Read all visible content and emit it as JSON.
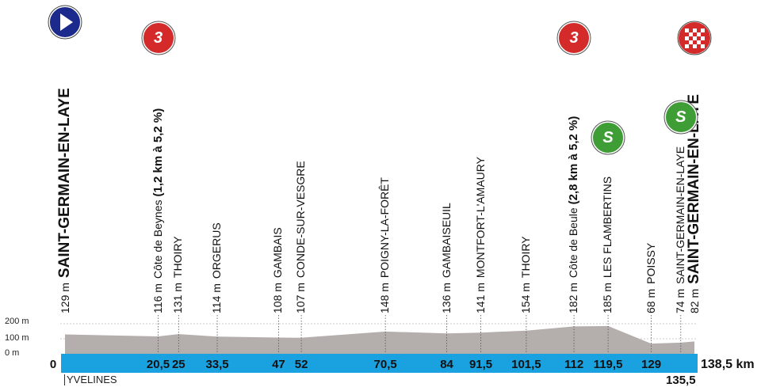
{
  "profile": {
    "y_ticks": [
      "200 m",
      "100 m",
      "0 m"
    ],
    "start_km": "0",
    "end_km": "138,5 km",
    "region": "YVELINES",
    "colors": {
      "baseline": "#1aa2e0",
      "terrain": "#b4aeac",
      "climb_marker": "#d42a2a",
      "sprint_marker": "#3f9d36",
      "start_marker": "#1b2a8c"
    },
    "points": [
      {
        "km": 0,
        "km_label": "",
        "alt_label": "129 m",
        "name": "SAINT-GERMAIN-EN-LAYE",
        "style": "big",
        "marker": "start-icon"
      },
      {
        "km": 20.5,
        "km_label": "20,5",
        "alt_label": "116 m",
        "name": "Côte de Beynes",
        "climb_detail": "(1,2 km à 5,2 %)",
        "style": "climb",
        "marker": "climb-3",
        "marker_text": "3"
      },
      {
        "km": 25,
        "km_label": "25",
        "alt_label": "131 m",
        "name": "THOIRY",
        "style": "normal"
      },
      {
        "km": 33.5,
        "km_label": "33,5",
        "alt_label": "114 m",
        "name": "ORGERUS",
        "style": "normal"
      },
      {
        "km": 47,
        "km_label": "47",
        "alt_label": "108 m",
        "name": "GAMBAIS",
        "style": "normal"
      },
      {
        "km": 52,
        "km_label": "52",
        "alt_label": "107 m",
        "name": "CONDE-SUR-VESGRE",
        "style": "normal"
      },
      {
        "km": 70.5,
        "km_label": "70,5",
        "alt_label": "148 m",
        "name": "POIGNY-LA-FORÊT",
        "style": "normal"
      },
      {
        "km": 84,
        "km_label": "84",
        "alt_label": "136 m",
        "name": "GAMBAISEUIL",
        "style": "normal"
      },
      {
        "km": 91.5,
        "km_label": "91,5",
        "alt_label": "141 m",
        "name": "MONTFORT-L'AMAURY",
        "style": "normal"
      },
      {
        "km": 101.5,
        "km_label": "101,5",
        "alt_label": "154 m",
        "name": "THOIRY",
        "style": "normal"
      },
      {
        "km": 112,
        "km_label": "112",
        "alt_label": "182 m",
        "name": "Côte de Beule",
        "climb_detail": "(2,8 km à 5,2 %)",
        "style": "climb",
        "marker": "climb-3",
        "marker_text": "3"
      },
      {
        "km": 119.5,
        "km_label": "119,5",
        "alt_label": "185 m",
        "name": "LES FLAMBERTINS",
        "style": "normal",
        "marker": "sprint",
        "marker_text": "S"
      },
      {
        "km": 129,
        "km_label": "129",
        "alt_label": "68 m",
        "name": "POISSY",
        "style": "normal"
      },
      {
        "km": 135.5,
        "km_label": "135,5",
        "km_below": true,
        "alt_label": "74 m",
        "name": "SAINT-GERMAIN-EN-LAYE",
        "style": "normal",
        "marker": "sprint",
        "marker_text": "S"
      },
      {
        "km": 138.5,
        "km_label": "",
        "alt_label": "82 m",
        "name": "SAINT-GERMAIN-EN-LAYE",
        "style": "big",
        "marker": "finish-icon"
      }
    ]
  }
}
